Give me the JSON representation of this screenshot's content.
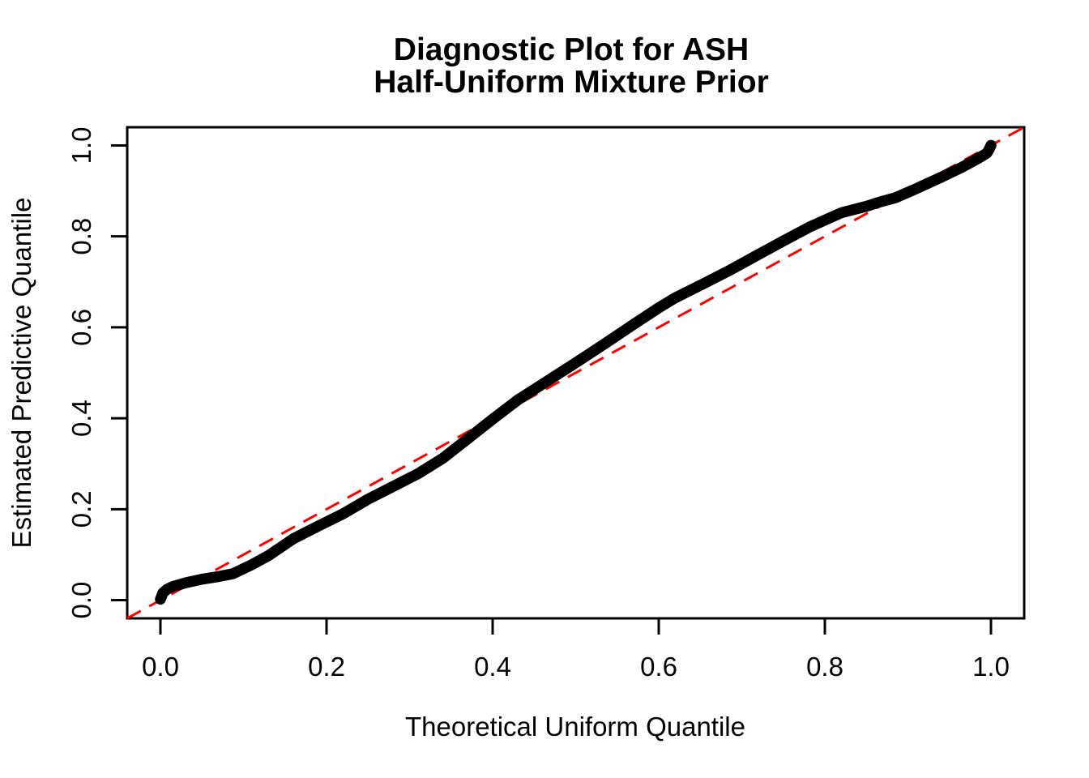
{
  "chart_data": {
    "type": "scatter",
    "title_line1": "Diagnostic Plot for ASH",
    "title_line2": "Half-Uniform Mixture Prior",
    "xlabel": "Theoretical Uniform Quantile",
    "ylabel": "Estimated Predictive Quantile",
    "xlim": [
      -0.04,
      1.04
    ],
    "ylim": [
      -0.04,
      1.04
    ],
    "x_ticks": [
      0.0,
      0.2,
      0.4,
      0.6,
      0.8,
      1.0
    ],
    "y_ticks": [
      0.0,
      0.2,
      0.4,
      0.6,
      0.8,
      1.0
    ],
    "x_tick_labels": [
      "0.0",
      "0.2",
      "0.4",
      "0.6",
      "0.8",
      "1.0"
    ],
    "y_tick_labels": [
      "0.0",
      "0.2",
      "0.4",
      "0.6",
      "0.8",
      "1.0"
    ],
    "grid": false,
    "legend_position": "none",
    "series": [
      {
        "name": "estimated-predictive-quantiles",
        "marker": "point-curve",
        "color": "#000000",
        "points": [
          [
            0.0,
            0.002
          ],
          [
            0.003,
            0.016
          ],
          [
            0.008,
            0.024
          ],
          [
            0.015,
            0.03
          ],
          [
            0.03,
            0.038
          ],
          [
            0.05,
            0.046
          ],
          [
            0.07,
            0.052
          ],
          [
            0.087,
            0.058
          ],
          [
            0.11,
            0.078
          ],
          [
            0.13,
            0.098
          ],
          [
            0.16,
            0.135
          ],
          [
            0.19,
            0.163
          ],
          [
            0.22,
            0.19
          ],
          [
            0.25,
            0.222
          ],
          [
            0.28,
            0.25
          ],
          [
            0.31,
            0.278
          ],
          [
            0.34,
            0.312
          ],
          [
            0.37,
            0.355
          ],
          [
            0.4,
            0.398
          ],
          [
            0.43,
            0.44
          ],
          [
            0.46,
            0.475
          ],
          [
            0.5,
            0.522
          ],
          [
            0.53,
            0.558
          ],
          [
            0.57,
            0.607
          ],
          [
            0.6,
            0.643
          ],
          [
            0.62,
            0.665
          ],
          [
            0.655,
            0.697
          ],
          [
            0.685,
            0.725
          ],
          [
            0.72,
            0.76
          ],
          [
            0.75,
            0.79
          ],
          [
            0.782,
            0.821
          ],
          [
            0.82,
            0.852
          ],
          [
            0.85,
            0.866
          ],
          [
            0.867,
            0.876
          ],
          [
            0.885,
            0.885
          ],
          [
            0.91,
            0.905
          ],
          [
            0.94,
            0.93
          ],
          [
            0.965,
            0.952
          ],
          [
            0.985,
            0.972
          ],
          [
            0.995,
            0.983
          ],
          [
            0.998,
            0.992
          ],
          [
            1.0,
            1.0
          ]
        ]
      }
    ],
    "reference_line": {
      "name": "identity-reference-line",
      "slope": 1,
      "intercept": 0,
      "x_start": -0.04,
      "x_end": 1.04,
      "style": "dashed",
      "color": "#FF0000"
    },
    "colors": {
      "background": "#FFFFFF",
      "axis": "#000000",
      "curve": "#000000",
      "reference": "#FF0000"
    }
  }
}
